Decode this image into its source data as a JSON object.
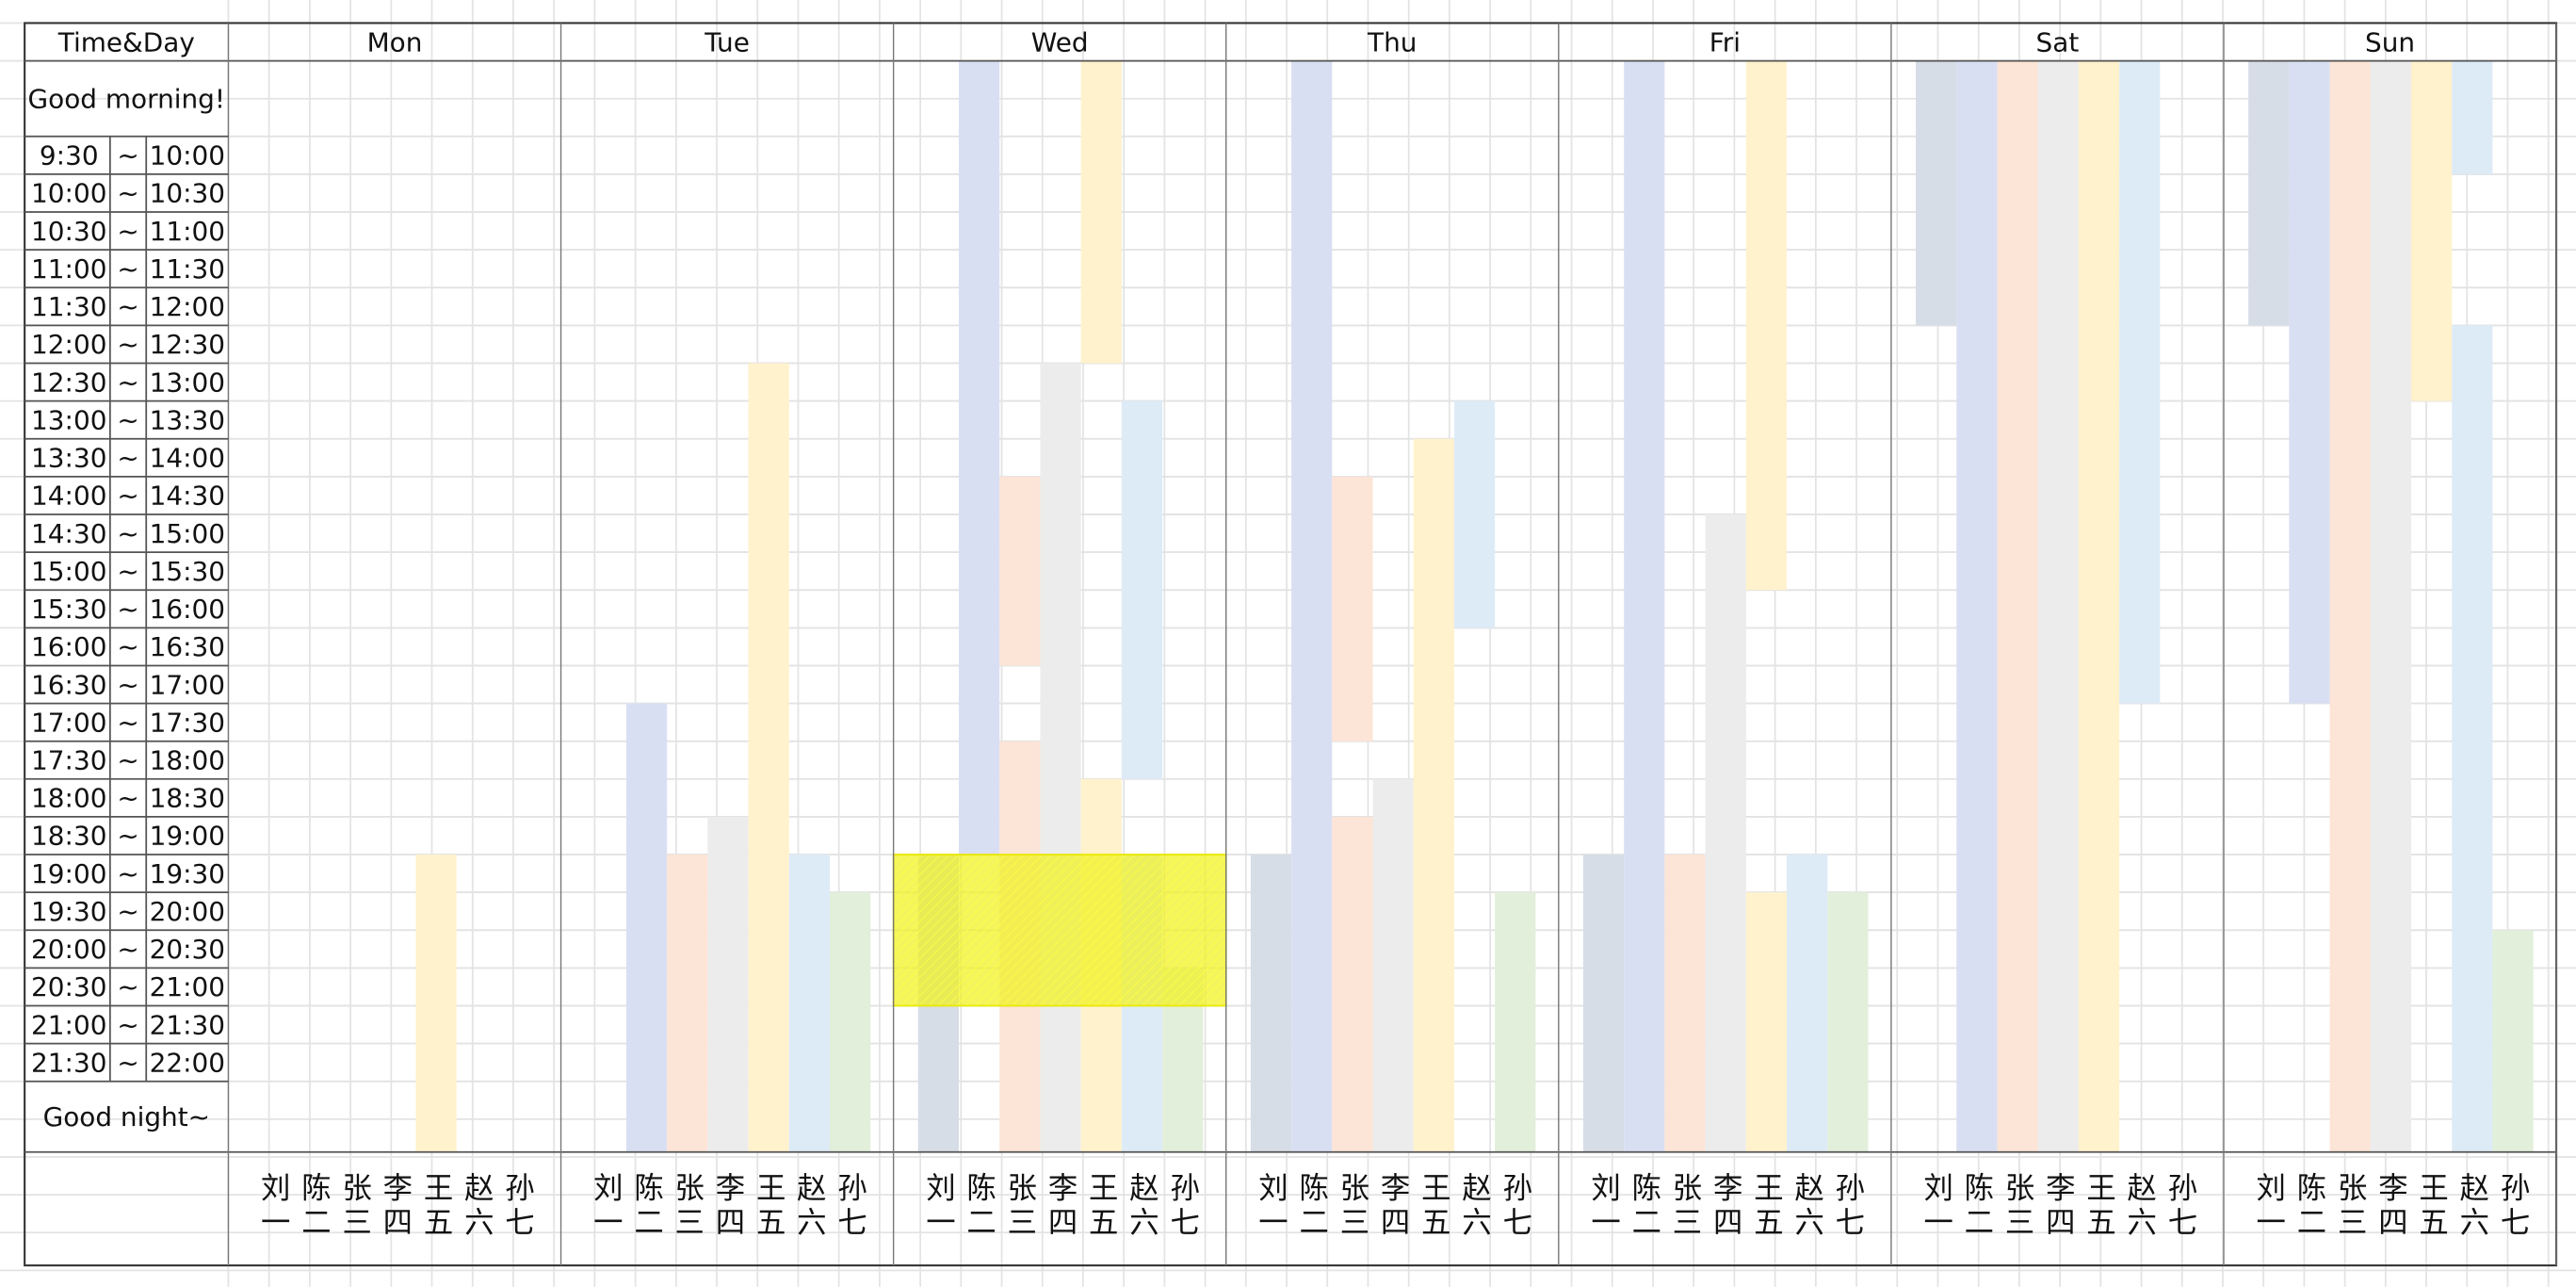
{
  "header": {
    "corner": "Time&Day",
    "days": [
      "Mon",
      "Tue",
      "Wed",
      "Thu",
      "Fri",
      "Sat",
      "Sun"
    ]
  },
  "greeting_top": "Good morning!",
  "greeting_bottom": "Good night~",
  "time_slots": [
    [
      "9:30",
      "~",
      "10:00"
    ],
    [
      "10:00",
      "~",
      "10:30"
    ],
    [
      "10:30",
      "~",
      "11:00"
    ],
    [
      "11:00",
      "~",
      "11:30"
    ],
    [
      "11:30",
      "~",
      "12:00"
    ],
    [
      "12:00",
      "~",
      "12:30"
    ],
    [
      "12:30",
      "~",
      "13:00"
    ],
    [
      "13:00",
      "~",
      "13:30"
    ],
    [
      "13:30",
      "~",
      "14:00"
    ],
    [
      "14:00",
      "~",
      "14:30"
    ],
    [
      "14:30",
      "~",
      "15:00"
    ],
    [
      "15:00",
      "~",
      "15:30"
    ],
    [
      "15:30",
      "~",
      "16:00"
    ],
    [
      "16:00",
      "~",
      "16:30"
    ],
    [
      "16:30",
      "~",
      "17:00"
    ],
    [
      "17:00",
      "~",
      "17:30"
    ],
    [
      "17:30",
      "~",
      "18:00"
    ],
    [
      "18:00",
      "~",
      "18:30"
    ],
    [
      "18:30",
      "~",
      "19:00"
    ],
    [
      "19:00",
      "~",
      "19:30"
    ],
    [
      "19:30",
      "~",
      "20:00"
    ],
    [
      "20:00",
      "~",
      "20:30"
    ],
    [
      "20:30",
      "~",
      "21:00"
    ],
    [
      "21:00",
      "~",
      "21:30"
    ],
    [
      "21:30",
      "~",
      "22:00"
    ]
  ],
  "people": [
    "刘一",
    "陈二",
    "张三",
    "李四",
    "王五",
    "赵六",
    "孙七"
  ]
}
